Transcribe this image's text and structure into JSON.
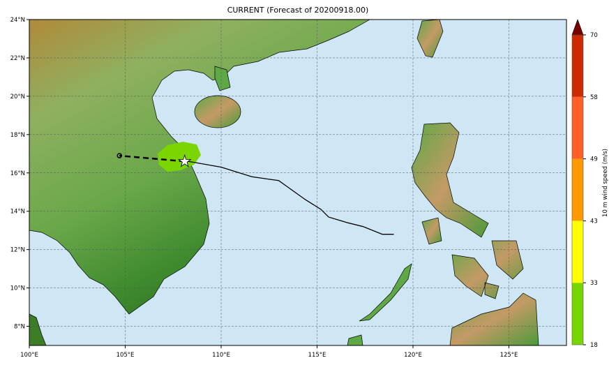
{
  "title": "CURRENT (Forecast of 20200918.00)",
  "map": {
    "lon_range": [
      100,
      128
    ],
    "lat_range": [
      7,
      24
    ],
    "lon_ticks": [
      "100°E",
      "105°E",
      "110°E",
      "115°E",
      "120°E",
      "125°E"
    ],
    "lat_ticks": [
      "8°N",
      "10°N",
      "12°N",
      "14°N",
      "16°N",
      "18°N",
      "20°N",
      "22°N",
      "24°N"
    ],
    "grid": true,
    "colors": {
      "ocean": "#cfe6f5",
      "track": "#000000",
      "swath": "#7ad500"
    },
    "observed_track": [
      [
        119.0,
        12.8
      ],
      [
        118.4,
        12.8
      ],
      [
        117.4,
        13.2
      ],
      [
        116.6,
        13.4
      ],
      [
        115.6,
        13.7
      ],
      [
        115.2,
        14.1
      ],
      [
        114.4,
        14.6
      ],
      [
        113.0,
        15.6
      ],
      [
        111.6,
        15.8
      ],
      [
        110.0,
        16.3
      ],
      [
        108.3,
        16.6
      ],
      [
        108.1,
        16.6
      ]
    ],
    "forecast_track": [
      [
        108.1,
        16.6
      ],
      [
        104.7,
        16.9
      ]
    ],
    "current_position": {
      "lon": 108.1,
      "lat": 16.6,
      "marker": "star-icon"
    }
  },
  "colorbar": {
    "label": "10 m wind speed (m/s)",
    "ticks": [
      "18",
      "33",
      "43",
      "49",
      "58",
      "70"
    ],
    "levels": [
      18,
      33,
      43,
      49,
      58,
      70
    ],
    "colors": [
      "#77d600",
      "#ffff00",
      "#ff9900",
      "#ff6028",
      "#cc2a00"
    ],
    "extend_color": "#7a0000"
  }
}
